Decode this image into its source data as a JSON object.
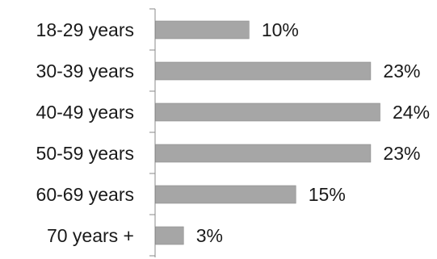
{
  "chart_data": {
    "type": "bar",
    "orientation": "horizontal",
    "categories": [
      "18-29 years",
      "30-39 years",
      "40-49 years",
      "50-59 years",
      "60-69 years",
      "70 years +"
    ],
    "values": [
      10,
      23,
      24,
      23,
      15,
      3
    ],
    "value_labels": [
      "10%",
      "23%",
      "24%",
      "23%",
      "15%",
      "3%"
    ],
    "unit": "%",
    "xlim": [
      0,
      24
    ],
    "bar_color": "#a6a6a6",
    "grid": false,
    "legend": "none"
  }
}
